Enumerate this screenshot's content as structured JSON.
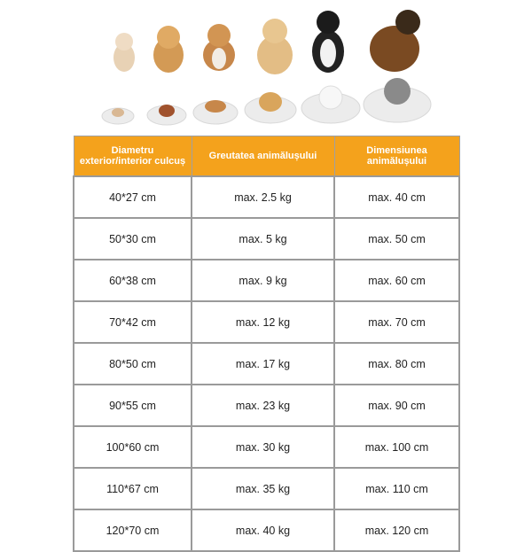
{
  "header": {
    "col1": "Diametru exterior/interior culcuș",
    "col2": "Greutatea animălușului",
    "col3": "Dimensiunea animălușului"
  },
  "rows": [
    {
      "diameter": "40*27 cm",
      "weight": "max. 2.5 kg",
      "size": "max. 40 cm"
    },
    {
      "diameter": "50*30 cm",
      "weight": "max. 5 kg",
      "size": "max. 50 cm"
    },
    {
      "diameter": "60*38 cm",
      "weight": "max. 9 kg",
      "size": "max. 60 cm"
    },
    {
      "diameter": "70*42 cm",
      "weight": "max. 12 kg",
      "size": "max. 70 cm"
    },
    {
      "diameter": "80*50 cm",
      "weight": "max. 17 kg",
      "size": "max. 80 cm"
    },
    {
      "diameter": "90*55 cm",
      "weight": "max. 23 kg",
      "size": "max. 90 cm"
    },
    {
      "diameter": "100*60 cm",
      "weight": "max. 30 kg",
      "size": "max. 100 cm"
    },
    {
      "diameter": "110*67 cm",
      "weight": "max. 35 kg",
      "size": "max. 110 cm"
    },
    {
      "diameter": "120*70 cm",
      "weight": "max. 40 kg",
      "size": "max. 120 cm"
    }
  ],
  "colors": {
    "header": "#f4a21c",
    "border": "#9a9a9a"
  }
}
